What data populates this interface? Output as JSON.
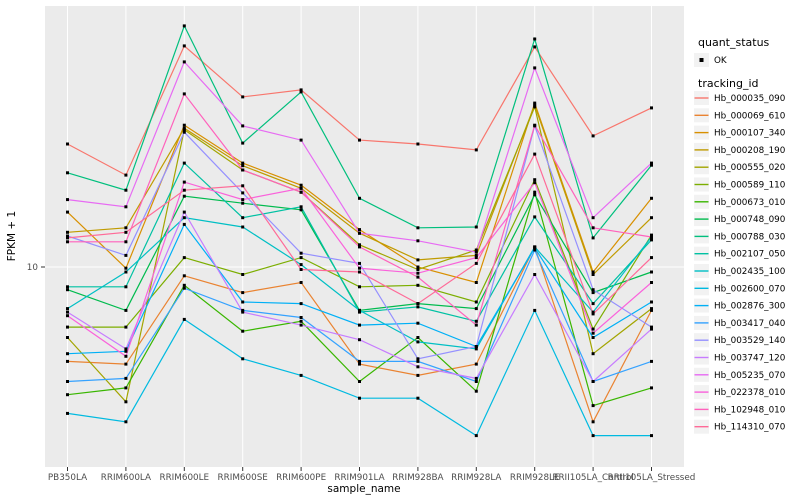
{
  "figure_type": "ggplot-line-chart",
  "colors": {
    "page_bg": "#FFFFFF",
    "panel_bg": "#EBEBEB",
    "grid": "#FFFFFF",
    "axis_text": "#4D4D4D",
    "tick_mark": "#333333",
    "title_text": "#000000",
    "legend_key_bg": "#F2F2F2",
    "point": "#000000"
  },
  "legend": {
    "quant_status": {
      "title": "quant_status",
      "items": [
        {
          "label": "OK",
          "marker": "black-point"
        }
      ]
    },
    "tracking_id": {
      "title": "tracking_id"
    }
  },
  "chart_data": {
    "type": "line",
    "title": "",
    "xlabel": "sample_name",
    "ylabel": "FPKM + 1",
    "y_scale": "log10",
    "y_ticks": [
      10
    ],
    "ylim": [
      2.0,
      85
    ],
    "grid": true,
    "legend_position": "right",
    "point_marker": {
      "shape": "small-black-point",
      "meaning": "quant_status OK"
    },
    "categories": [
      "PB350LA",
      "RRIM600LA",
      "RRIM600LE",
      "RRIM600SE",
      "RRIM600PE",
      "RRIM901LA",
      "RRIM928BA",
      "RRIM928LA",
      "RRIM928LE",
      "RRII105LA_Control",
      "RRII105LA_Stressed"
    ],
    "series": [
      {
        "name": "Hb_000035_090",
        "color": "#F8766D",
        "values": [
          27.5,
          21.3,
          61.6,
          40.5,
          42.9,
          28.4,
          27.5,
          26.2,
          61.1,
          29.4,
          37.0
        ]
      },
      {
        "name": "Hb_000069_610",
        "color": "#EA8331",
        "values": [
          4.6,
          4.5,
          9.3,
          8.1,
          8.8,
          4.5,
          4.1,
          4.5,
          11.8,
          2.8,
          7.0
        ]
      },
      {
        "name": "Hb_000107_340",
        "color": "#D89000",
        "values": [
          15.7,
          9.9,
          32.1,
          23.5,
          19.6,
          13.6,
          10.0,
          8.8,
          38.5,
          9.6,
          17.6
        ]
      },
      {
        "name": "Hb_000208_190",
        "color": "#C09B00",
        "values": [
          13.3,
          13.8,
          31.3,
          23.0,
          19.1,
          13.2,
          10.6,
          11.0,
          37.9,
          9.4,
          15.0
        ]
      },
      {
        "name": "Hb_000555_020",
        "color": "#A3A500",
        "values": [
          5.6,
          3.3,
          30.9,
          22.2,
          18.5,
          12.0,
          9.8,
          11.5,
          37.3,
          4.9,
          7.1
        ]
      },
      {
        "name": "Hb_000589_110",
        "color": "#7CAE00",
        "values": [
          6.1,
          6.1,
          10.8,
          9.4,
          10.8,
          8.5,
          8.6,
          7.5,
          20.5,
          6.0,
          13.0
        ]
      },
      {
        "name": "Hb_000673_010",
        "color": "#39B600",
        "values": [
          3.5,
          3.7,
          8.6,
          5.9,
          6.4,
          3.9,
          5.6,
          3.6,
          18.5,
          3.2,
          3.7
        ]
      },
      {
        "name": "Hb_000748_090",
        "color": "#00BB4E",
        "values": [
          8.3,
          7.0,
          17.9,
          16.9,
          16.0,
          7.0,
          7.4,
          7.1,
          18.1,
          8.1,
          9.6
        ]
      },
      {
        "name": "Hb_000788_030",
        "color": "#00BF7D",
        "values": [
          21.7,
          18.8,
          72.6,
          27.7,
          42.2,
          17.6,
          13.8,
          13.9,
          65.2,
          12.7,
          23.1
        ]
      },
      {
        "name": "Hb_002107_050",
        "color": "#00C1A3",
        "values": [
          8.5,
          8.5,
          23.5,
          15.0,
          16.4,
          6.9,
          7.2,
          6.4,
          15.1,
          7.4,
          12.5
        ]
      },
      {
        "name": "Hb_002435_100",
        "color": "#00BFC4",
        "values": [
          7.1,
          9.6,
          15.0,
          13.9,
          10.2,
          7.0,
          5.4,
          5.1,
          11.8,
          6.9,
          12.8
        ]
      },
      {
        "name": "Hb_002600_070",
        "color": "#00BAE0",
        "values": [
          3.0,
          2.8,
          6.5,
          4.7,
          4.1,
          3.4,
          3.4,
          2.5,
          7.0,
          2.5,
          2.5
        ]
      },
      {
        "name": "Hb_002876_300",
        "color": "#00B0F6",
        "values": [
          4.9,
          5.0,
          14.2,
          7.5,
          7.4,
          6.2,
          6.3,
          5.2,
          11.7,
          5.6,
          7.5
        ]
      },
      {
        "name": "Hb_003417_040",
        "color": "#35A2FF",
        "values": [
          3.9,
          4.0,
          8.4,
          7.0,
          6.6,
          4.6,
          4.6,
          3.9,
          11.5,
          3.9,
          4.6
        ]
      },
      {
        "name": "Hb_003529_140",
        "color": "#9590FF",
        "values": [
          12.9,
          11.0,
          30.3,
          18.4,
          11.2,
          10.3,
          4.7,
          5.2,
          31.9,
          8.3,
          6.1
        ]
      },
      {
        "name": "Hb_003747_120",
        "color": "#C77CFF",
        "values": [
          6.9,
          5.1,
          15.7,
          6.9,
          6.2,
          5.5,
          4.4,
          4.0,
          9.4,
          3.9,
          6.0
        ]
      },
      {
        "name": "Hb_005235_070",
        "color": "#E76BF3",
        "values": [
          17.4,
          16.4,
          54.0,
          31.9,
          28.4,
          13.2,
          12.4,
          11.3,
          51.4,
          15.0,
          23.5
        ]
      },
      {
        "name": "Hb_022378_010",
        "color": "#FA62DB",
        "values": [
          6.7,
          4.8,
          20.1,
          17.4,
          19.1,
          9.9,
          9.5,
          10.8,
          20.0,
          5.8,
          8.8
        ]
      },
      {
        "name": "Hb_102948_010",
        "color": "#FF62BC",
        "values": [
          12.3,
          12.3,
          41.5,
          22.2,
          18.5,
          11.8,
          9.2,
          6.2,
          32.1,
          13.8,
          12.8
        ]
      },
      {
        "name": "Hb_114310_070",
        "color": "#FF6A98",
        "values": [
          12.7,
          13.3,
          18.8,
          19.5,
          9.8,
          9.6,
          7.4,
          10.3,
          25.3,
          6.8,
          10.8
        ]
      }
    ]
  }
}
